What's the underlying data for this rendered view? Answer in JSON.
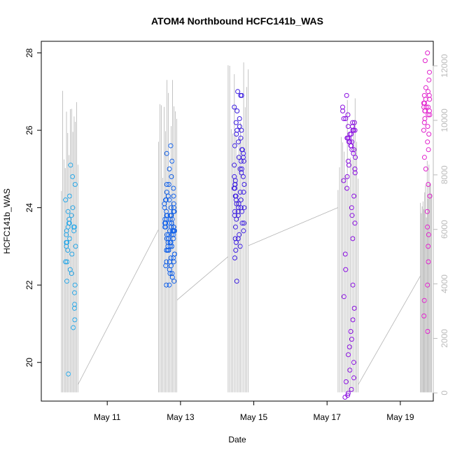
{
  "chart_data": {
    "type": "scatter",
    "title": "ATOM4 Northbound HCFC141b_WAS",
    "xlabel": "Date",
    "ylabel": "HCFC141b_WAS",
    "x_ticks": [
      "May 11",
      "May 13",
      "May 15",
      "May 17",
      "May 19"
    ],
    "x_tick_days": [
      11,
      13,
      15,
      17,
      19
    ],
    "xlim_days": [
      9.2,
      19.9
    ],
    "ylim": [
      19.0,
      28.3
    ],
    "y_ticks": [
      20,
      22,
      24,
      26,
      28
    ],
    "y2_ticks": [
      0,
      2000,
      4000,
      6000,
      8000,
      10000,
      12000
    ],
    "y2lim": [
      -300,
      12900
    ],
    "grid": false,
    "legend": "none",
    "colors": {
      "flight1": "#29a8e8",
      "flight2": "#1160e8",
      "flight3": "#3c1ee0",
      "flight4": "#8a10e0",
      "flight5": "#e020cc",
      "altitude": "#b4b4b4"
    },
    "series": [
      {
        "day_range": [
          9.8,
          10.2
        ],
        "color_key": "flight1",
        "y_values": [
          25.1,
          24.8,
          24.6,
          24.3,
          24.0,
          23.9,
          23.8,
          23.7,
          23.6,
          23.6,
          23.5,
          23.5,
          23.4,
          23.4,
          23.3,
          23.2,
          23.1,
          23.0,
          23.0,
          22.9,
          22.8,
          22.6,
          22.4,
          22.3,
          22.1,
          22.0,
          21.8,
          21.5,
          21.4,
          21.1,
          20.9,
          19.7,
          24.2,
          23.5,
          23.1,
          22.6
        ]
      },
      {
        "day_range": [
          12.5,
          12.9
        ],
        "color_key": "flight2",
        "y_values": [
          25.6,
          25.4,
          25.2,
          25.0,
          24.8,
          24.6,
          24.5,
          24.4,
          24.3,
          24.3,
          24.2,
          24.2,
          24.1,
          24.1,
          24.0,
          24.0,
          24.0,
          23.9,
          23.9,
          23.9,
          23.8,
          23.8,
          23.8,
          23.8,
          23.7,
          23.7,
          23.7,
          23.7,
          23.6,
          23.6,
          23.6,
          23.6,
          23.6,
          23.5,
          23.5,
          23.5,
          23.5,
          23.5,
          23.4,
          23.4,
          23.4,
          23.4,
          23.4,
          23.3,
          23.3,
          23.3,
          23.3,
          23.2,
          23.2,
          23.2,
          23.2,
          23.1,
          23.1,
          23.1,
          23.0,
          23.0,
          23.0,
          22.9,
          22.9,
          22.9,
          22.8,
          22.8,
          22.7,
          22.7,
          22.6,
          22.6,
          22.5,
          22.5,
          22.4,
          22.3,
          22.2,
          22.1,
          22.0,
          22.0,
          24.6,
          24.2,
          23.8,
          23.4,
          23.0,
          22.6,
          22.3
        ]
      },
      {
        "day_range": [
          14.4,
          14.8
        ],
        "color_key": "flight3",
        "y_values": [
          27.0,
          26.9,
          26.6,
          26.5,
          26.3,
          26.2,
          26.0,
          26.0,
          25.9,
          25.8,
          25.7,
          25.6,
          25.5,
          25.5,
          25.4,
          25.3,
          25.2,
          25.2,
          25.1,
          25.0,
          25.0,
          24.9,
          24.8,
          24.8,
          24.7,
          24.6,
          24.6,
          24.5,
          24.5,
          24.4,
          24.4,
          24.3,
          24.3,
          24.2,
          24.2,
          24.1,
          24.1,
          24.0,
          24.0,
          24.0,
          23.9,
          23.9,
          23.8,
          23.8,
          23.7,
          23.6,
          23.6,
          23.5,
          23.4,
          23.3,
          23.2,
          23.1,
          23.0,
          22.9,
          22.7,
          22.1,
          26.9,
          26.1,
          25.3,
          24.6,
          23.9,
          23.2
        ]
      },
      {
        "day_range": [
          17.35,
          17.85
        ],
        "color_key": "flight4",
        "y_values": [
          26.9,
          26.6,
          26.5,
          26.4,
          26.3,
          26.3,
          26.2,
          26.2,
          26.1,
          26.1,
          26.0,
          26.0,
          26.0,
          25.9,
          25.9,
          25.8,
          25.8,
          25.8,
          25.7,
          25.7,
          25.7,
          25.6,
          25.6,
          25.5,
          25.5,
          25.4,
          25.3,
          25.2,
          25.1,
          25.0,
          24.9,
          24.8,
          24.7,
          24.5,
          24.3,
          24.0,
          23.8,
          23.6,
          23.2,
          22.8,
          22.4,
          22.0,
          21.7,
          21.4,
          21.1,
          20.8,
          20.6,
          20.4,
          20.2,
          20.0,
          19.8,
          19.6,
          19.5,
          19.3,
          19.2,
          19.15,
          19.1
        ]
      },
      {
        "day_range": [
          19.6,
          19.85
        ],
        "color_key": "flight5",
        "y_values": [
          28.0,
          27.8,
          27.5,
          27.3,
          27.1,
          27.0,
          26.9,
          26.9,
          26.8,
          26.8,
          26.7,
          26.7,
          26.6,
          26.6,
          26.6,
          26.5,
          26.5,
          26.5,
          26.4,
          26.4,
          26.3,
          26.2,
          26.1,
          26.0,
          25.9,
          25.7,
          25.5,
          25.3,
          25.0,
          24.6,
          24.3,
          23.9,
          23.5,
          23.3,
          23.0,
          22.6,
          22.0,
          21.6,
          21.2,
          20.8
        ]
      }
    ],
    "altitude_series": [
      {
        "day_range": [
          9.75,
          10.2
        ],
        "base": 20,
        "top": 11400
      },
      {
        "day_range": [
          12.4,
          12.9
        ],
        "base": 20,
        "top": 11800
      },
      {
        "day_range": [
          14.3,
          14.85
        ],
        "base": 20,
        "top": 12400
      },
      {
        "day_range": [
          17.3,
          17.85
        ],
        "base": 20,
        "top": 11100
      },
      {
        "day_range": [
          19.55,
          19.85
        ],
        "base": 20,
        "top": 8800
      }
    ],
    "altitude_transits": [
      [
        [
          10.2,
          300
        ],
        [
          12.4,
          6000
        ]
      ],
      [
        [
          12.9,
          3400
        ],
        [
          14.3,
          5000
        ]
      ],
      [
        [
          14.85,
          5400
        ],
        [
          17.3,
          6800
        ]
      ],
      [
        [
          17.85,
          300
        ],
        [
          19.55,
          4300
        ]
      ]
    ]
  }
}
